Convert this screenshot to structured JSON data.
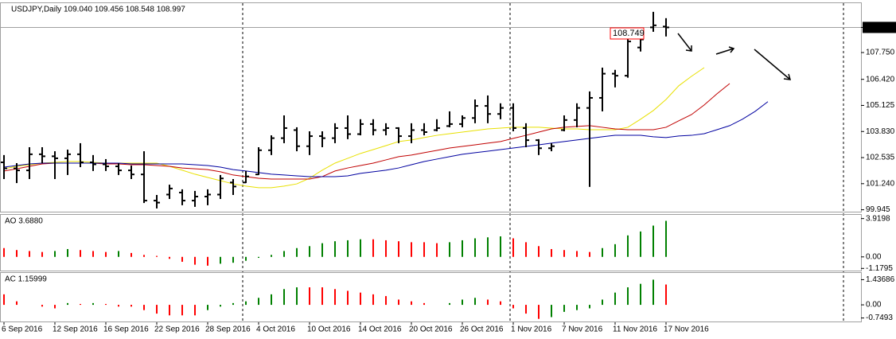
{
  "chart_data": [
    {
      "type": "ohlc",
      "title": "USDJPY,Daily  109.040 109.456 108.548 108.997",
      "color": "#000000",
      "categories": [
        "6 Sep 2016",
        null,
        null,
        null,
        "12 Sep 2016",
        null,
        null,
        null,
        "16 Sep 2016",
        null,
        null,
        null,
        "22 Sep 2016",
        null,
        null,
        null,
        "28 Sep 2016",
        null,
        null,
        null,
        "4 Oct 2016",
        null,
        null,
        null,
        "10 Oct 2016",
        null,
        null,
        null,
        "14 Oct 2016",
        null,
        null,
        null,
        "20 Oct 2016",
        null,
        null,
        null,
        "26 Oct 2016",
        null,
        null,
        null,
        "1 Nov 2016",
        null,
        null,
        null,
        "7 Nov 2016",
        null,
        null,
        null,
        "11 Nov 2016",
        null,
        null,
        null,
        "17 Nov 2016",
        null,
        null,
        null,
        null,
        null,
        null,
        null,
        null
      ],
      "open": [
        102.3,
        102.0,
        101.9,
        102.7,
        102.6,
        102.5,
        102.7,
        102.3,
        102.2,
        102.1,
        101.9,
        101.7,
        100.4,
        100.7,
        100.8,
        100.4,
        100.6,
        100.7,
        101.3,
        101.3,
        101.7,
        102.9,
        103.5,
        103.9,
        103.1,
        103.6,
        103.5,
        104.0,
        103.7,
        104.2,
        103.9,
        104.0,
        103.6,
        103.9,
        103.9,
        104.1,
        104.2,
        104.5,
        105.1,
        104.7,
        105.0,
        104.0,
        103.4,
        103.0,
        103.9,
        104.4,
        105.0,
        105.5,
        106.7,
        106.6,
        108.0,
        109.0,
        109.04,
        null,
        null,
        null,
        null,
        null,
        null,
        null,
        null
      ],
      "high": [
        102.66,
        102.26,
        103.05,
        103.05,
        102.85,
        102.93,
        103.25,
        102.66,
        102.46,
        102.26,
        102.14,
        102.85,
        100.68,
        101.19,
        100.96,
        100.88,
        100.96,
        101.67,
        101.47,
        101.87,
        103.05,
        103.64,
        104.63,
        104.04,
        103.84,
        103.84,
        104.24,
        104.63,
        104.44,
        104.44,
        104.24,
        104.04,
        104.24,
        104.24,
        104.44,
        104.83,
        104.63,
        105.42,
        105.62,
        105.23,
        105.23,
        104.24,
        103.45,
        103.25,
        104.63,
        105.23,
        105.82,
        107.0,
        106.89,
        108.78,
        108.59,
        109.77,
        109.456,
        null,
        null,
        null,
        null,
        null,
        null,
        null,
        null
      ],
      "low": [
        101.47,
        101.27,
        101.47,
        102.26,
        101.47,
        101.67,
        102.06,
        101.87,
        101.87,
        101.67,
        101.47,
        100.28,
        100.01,
        100.48,
        100.17,
        100.09,
        100.17,
        100.48,
        100.68,
        101.27,
        101.67,
        102.66,
        103.25,
        102.85,
        102.66,
        103.05,
        103.25,
        103.45,
        103.64,
        103.64,
        103.64,
        103.25,
        103.25,
        103.64,
        103.84,
        104.04,
        104.04,
        104.24,
        104.24,
        104.44,
        103.84,
        103.05,
        102.66,
        102.85,
        103.84,
        104.04,
        101.08,
        104.83,
        106.02,
        106.5,
        107.8,
        108.78,
        108.548,
        null,
        null,
        null,
        null,
        null,
        null,
        null,
        null
      ],
      "close": [
        102.0,
        101.9,
        102.7,
        102.6,
        102.5,
        102.7,
        102.3,
        102.2,
        102.1,
        101.9,
        101.7,
        100.4,
        100.3,
        101.0,
        100.4,
        100.6,
        100.7,
        101.5,
        101.1,
        101.6,
        102.9,
        103.5,
        104.0,
        103.1,
        103.6,
        103.5,
        104.0,
        103.7,
        104.2,
        103.9,
        104.0,
        103.6,
        103.9,
        103.8,
        104.0,
        104.2,
        104.5,
        105.1,
        104.7,
        105.0,
        104.0,
        103.4,
        103.0,
        103.1,
        104.4,
        105.0,
        105.5,
        106.7,
        106.6,
        108.3,
        108.4,
        109.1,
        108.997,
        null,
        null,
        null,
        null,
        null,
        null,
        null,
        null
      ],
      "series": [
        {
          "color": "#e8e000",
          "values": [
            101.98,
            102.1,
            102.18,
            102.26,
            102.3,
            102.34,
            102.34,
            102.3,
            102.26,
            102.26,
            102.26,
            102.26,
            102.26,
            102.1,
            101.91,
            101.71,
            101.55,
            101.39,
            101.23,
            101.12,
            101.04,
            101.04,
            101.12,
            101.23,
            101.51,
            101.91,
            102.26,
            102.5,
            102.74,
            102.93,
            103.13,
            103.33,
            103.41,
            103.53,
            103.64,
            103.72,
            103.8,
            103.88,
            103.96,
            104.0,
            104.04,
            104.04,
            104.04,
            104.0,
            103.96,
            103.96,
            103.92,
            103.92,
            103.92,
            104.04,
            104.44,
            104.87,
            105.42,
            106.1,
            106.57,
            107.0,
            null,
            null,
            null,
            null,
            null
          ]
        },
        {
          "color": "#c00000",
          "values": [
            101.87,
            101.98,
            102.1,
            102.22,
            102.26,
            102.26,
            102.26,
            102.26,
            102.22,
            102.22,
            102.18,
            102.18,
            102.14,
            102.1,
            102.02,
            101.98,
            101.94,
            101.83,
            101.67,
            101.59,
            101.51,
            101.47,
            101.47,
            101.47,
            101.47,
            101.59,
            101.87,
            102.02,
            102.14,
            102.26,
            102.42,
            102.58,
            102.66,
            102.78,
            102.89,
            103.01,
            103.09,
            103.17,
            103.25,
            103.33,
            103.49,
            103.64,
            103.8,
            103.96,
            104.04,
            104.08,
            104.12,
            104.04,
            103.96,
            103.92,
            103.92,
            103.92,
            104.04,
            104.36,
            104.67,
            105.15,
            105.7,
            106.21,
            null,
            null,
            null
          ]
        },
        {
          "color": "#0000a0",
          "values": [
            102.06,
            102.14,
            102.22,
            102.26,
            102.26,
            102.26,
            102.26,
            102.26,
            102.26,
            102.26,
            102.22,
            102.22,
            102.22,
            102.22,
            102.22,
            102.18,
            102.14,
            102.06,
            101.94,
            101.87,
            101.79,
            101.71,
            101.67,
            101.63,
            101.59,
            101.59,
            101.59,
            101.63,
            101.75,
            101.83,
            101.91,
            102.02,
            102.18,
            102.34,
            102.46,
            102.58,
            102.7,
            102.78,
            102.85,
            102.93,
            103.01,
            103.09,
            103.17,
            103.25,
            103.33,
            103.41,
            103.49,
            103.57,
            103.64,
            103.64,
            103.64,
            103.57,
            103.53,
            103.61,
            103.64,
            103.72,
            103.92,
            104.12,
            104.44,
            104.83,
            105.31
          ]
        }
      ],
      "ylim": [
        99.85,
        110.2
      ],
      "yticks": [
        108.997,
        {
          "value": 107.75,
          "label": "107.750"
        },
        {
          "value": 106.42,
          "label": "106.420"
        },
        105.125,
        {
          "value": 103.83,
          "label": "103.830"
        },
        102.535,
        {
          "value": 101.24,
          "label": "101.240"
        },
        99.945
      ],
      "annotation": {
        "text": "108.749",
        "color": "#ff0000"
      }
    },
    {
      "type": "bar",
      "title": "AO 3.6880",
      "up_color": "#008000",
      "down_color": "#ff0000",
      "values": [
        0.9,
        0.7,
        0.6,
        0.5,
        0.6,
        0.8,
        0.7,
        0.6,
        0.5,
        0.6,
        0.4,
        0.2,
        0.1,
        -0.2,
        -0.5,
        -0.8,
        -0.9,
        -0.7,
        -0.6,
        -0.4,
        -0.1,
        0.2,
        0.6,
        0.9,
        1.1,
        1.4,
        1.6,
        1.7,
        1.8,
        1.8,
        1.7,
        1.6,
        1.5,
        1.5,
        1.4,
        1.5,
        1.7,
        1.9,
        2.0,
        2.1,
        1.9,
        1.5,
        1.1,
        0.8,
        0.7,
        0.6,
        0.5,
        0.9,
        1.3,
        2.2,
        2.6,
        3.2,
        3.688,
        null,
        null,
        null,
        null,
        null,
        null,
        null,
        null
      ],
      "ylim": [
        -1.4,
        4.3
      ],
      "yticks": [
        3.9198,
        {
          "value": 0,
          "label": "0.00"
        },
        -1.1795
      ]
    },
    {
      "type": "bar",
      "title": "AC 1.15999",
      "up_color": "#008000",
      "down_color": "#ff0000",
      "values": [
        0.6,
        0.2,
        0.0,
        -0.1,
        -0.2,
        0.1,
        0.05,
        0.1,
        0.05,
        -0.1,
        -0.1,
        -0.3,
        -0.5,
        -0.6,
        -0.6,
        -0.6,
        -0.3,
        -0.1,
        0.1,
        0.2,
        0.4,
        0.6,
        0.9,
        1.0,
        1.0,
        1.0,
        0.9,
        0.8,
        0.7,
        0.6,
        0.5,
        0.3,
        0.2,
        0.1,
        0.0,
        0.1,
        0.3,
        0.4,
        0.3,
        0.2,
        -0.2,
        -0.5,
        -0.8,
        -0.7,
        -0.4,
        -0.3,
        -0.2,
        0.3,
        0.7,
        1.0,
        1.2,
        1.43686,
        1.15999,
        null,
        null,
        null,
        null,
        null,
        null,
        null,
        null
      ],
      "ylim": [
        -0.95,
        1.82
      ],
      "yticks": [
        1.43686,
        {
          "value": 0,
          "label": "0.00"
        },
        -0.7493
      ]
    }
  ]
}
